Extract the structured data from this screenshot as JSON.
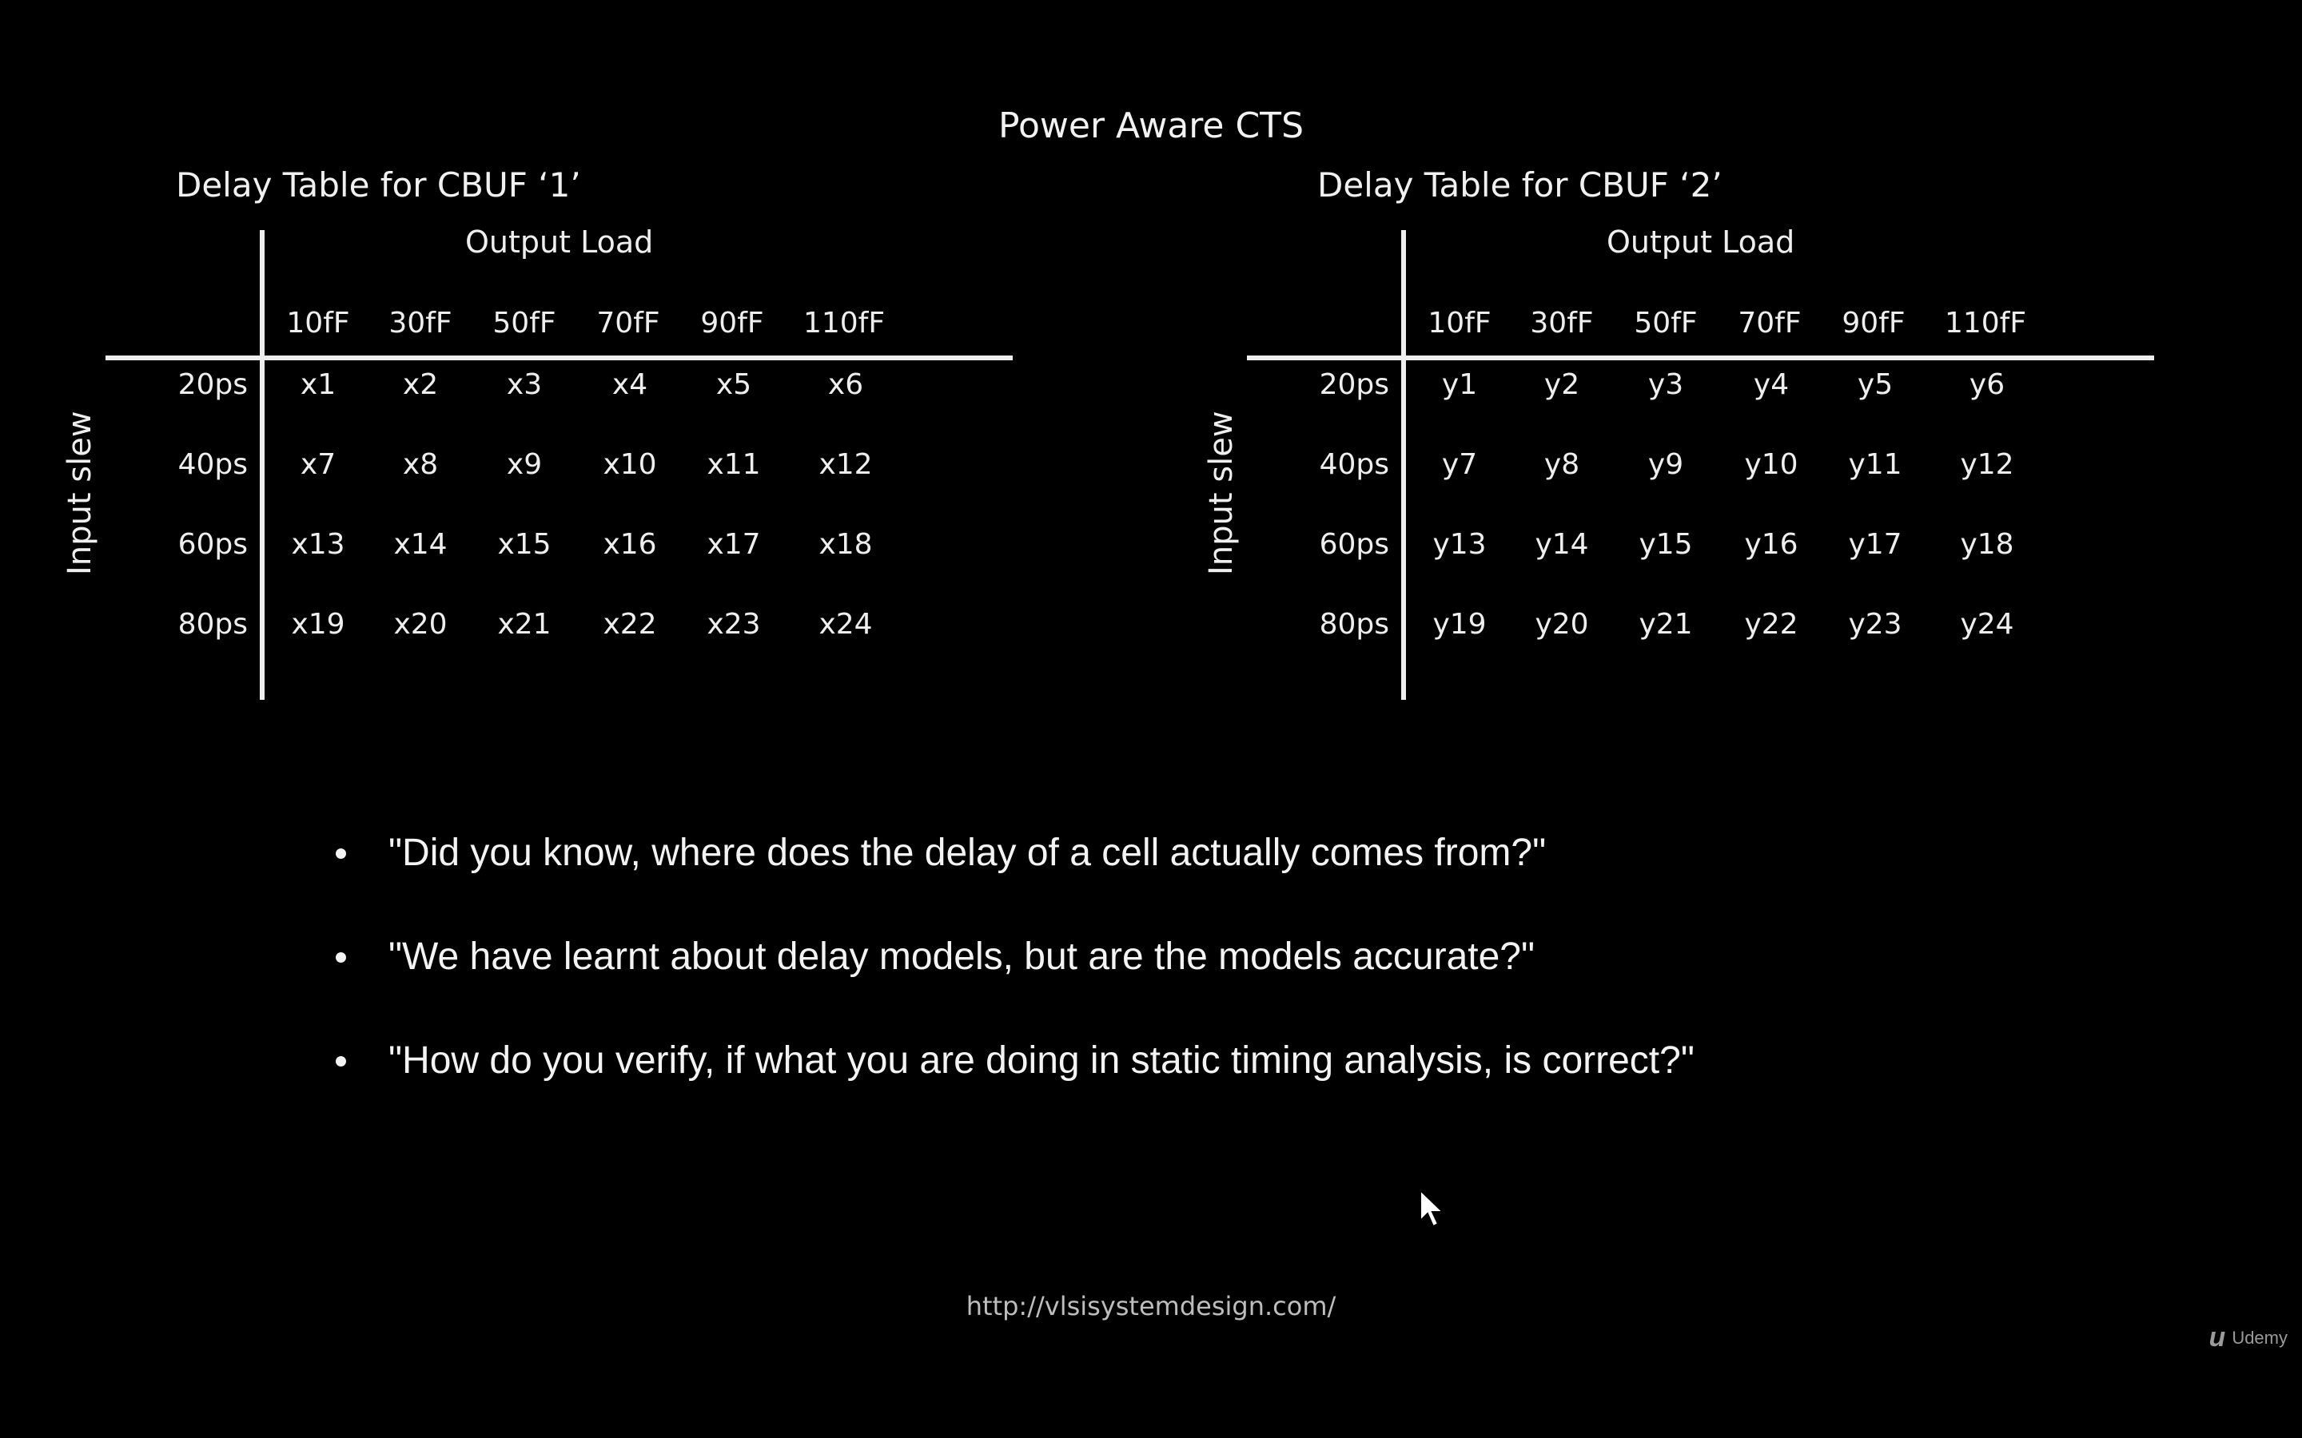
{
  "slide_title": "Power Aware CTS",
  "tables": [
    {
      "title": "Delay Table for CBUF ‘1’",
      "column_group_label": "Output Load",
      "row_group_label": "Input slew",
      "columns": [
        "10fF",
        "30fF",
        "50fF",
        "70fF",
        "90fF",
        "110fF"
      ],
      "rows": [
        {
          "label": "20ps",
          "cells": [
            "x1",
            "x2",
            "x3",
            "x4",
            "x5",
            "x6"
          ]
        },
        {
          "label": "40ps",
          "cells": [
            "x7",
            "x8",
            "x9",
            "x10",
            "x11",
            "x12"
          ]
        },
        {
          "label": "60ps",
          "cells": [
            "x13",
            "x14",
            "x15",
            "x16",
            "x17",
            "x18"
          ]
        },
        {
          "label": "80ps",
          "cells": [
            "x19",
            "x20",
            "x21",
            "x22",
            "x23",
            "x24"
          ]
        }
      ]
    },
    {
      "title": "Delay Table for CBUF ‘2’",
      "column_group_label": "Output Load",
      "row_group_label": "Input slew",
      "columns": [
        "10fF",
        "30fF",
        "50fF",
        "70fF",
        "90fF",
        "110fF"
      ],
      "rows": [
        {
          "label": "20ps",
          "cells": [
            "y1",
            "y2",
            "y3",
            "y4",
            "y5",
            "y6"
          ]
        },
        {
          "label": "40ps",
          "cells": [
            "y7",
            "y8",
            "y9",
            "y10",
            "y11",
            "y12"
          ]
        },
        {
          "label": "60ps",
          "cells": [
            "y13",
            "y14",
            "y15",
            "y16",
            "y17",
            "y18"
          ]
        },
        {
          "label": "80ps",
          "cells": [
            "y19",
            "y20",
            "y21",
            "y22",
            "y23",
            "y24"
          ]
        }
      ]
    }
  ],
  "bullets": [
    "\"Did you know, where does the delay of a cell actually comes from?\"",
    "\"We have learnt about delay models, but are the models accurate?\"",
    "\"How do you verify, if what you are doing in static timing analysis, is correct?\""
  ],
  "footer_url": "http://vlsisystemdesign.com/",
  "logo": {
    "mark": "u",
    "text": "Udemy"
  },
  "icons": {
    "cursor": "mouse-pointer-icon"
  }
}
